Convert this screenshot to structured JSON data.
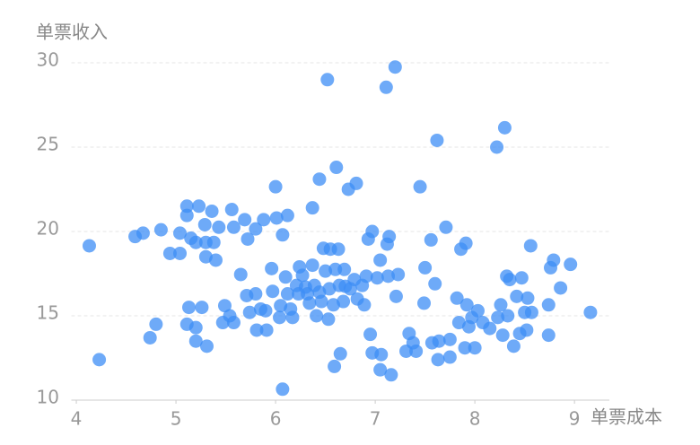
{
  "chart_data": {
    "type": "scatter",
    "y_label": "单票收入",
    "x_label": "单票成本",
    "color": "#3d8ef5",
    "xlim": [
      3.95,
      9.35
    ],
    "ylim": [
      10,
      30
    ],
    "xticks": [
      4,
      5,
      6,
      7,
      8,
      9
    ],
    "yticks": [
      10,
      15,
      20,
      25,
      30
    ],
    "grid": true,
    "x": [
      4.13,
      4.23,
      4.59,
      4.67,
      4.74,
      4.8,
      4.85,
      4.94,
      5.04,
      5.04,
      5.11,
      5.11,
      5.13,
      5.11,
      5.15,
      5.2,
      5.2,
      5.2,
      5.23,
      5.26,
      5.29,
      5.3,
      5.3,
      5.31,
      5.36,
      5.38,
      5.4,
      5.43,
      5.49,
      5.47,
      5.54,
      5.56,
      5.58,
      5.58,
      5.65,
      5.69,
      5.71,
      5.72,
      5.74,
      5.8,
      5.8,
      5.81,
      5.85,
      5.88,
      5.91,
      5.9,
      5.96,
      5.97,
      6.0,
      6.01,
      6.04,
      6.05,
      6.07,
      6.07,
      6.1,
      6.12,
      6.12,
      6.15,
      6.17,
      6.21,
      6.23,
      6.24,
      6.27,
      6.3,
      6.32,
      6.34,
      6.37,
      6.37,
      6.39,
      6.41,
      6.44,
      6.44,
      6.46,
      6.48,
      6.5,
      6.52,
      6.53,
      6.54,
      6.55,
      6.58,
      6.59,
      6.6,
      6.61,
      6.63,
      6.64,
      6.65,
      6.68,
      6.69,
      6.7,
      6.73,
      6.75,
      6.79,
      6.81,
      6.82,
      6.87,
      6.89,
      6.91,
      6.93,
      6.95,
      6.97,
      6.97,
      7.02,
      7.05,
      7.05,
      7.06,
      7.11,
      7.12,
      7.13,
      7.14,
      7.16,
      7.2,
      7.21,
      7.23,
      7.31,
      7.34,
      7.38,
      7.41,
      7.45,
      7.49,
      7.5,
      7.56,
      7.57,
      7.6,
      7.62,
      7.63,
      7.64,
      7.71,
      7.75,
      7.75,
      7.82,
      7.84,
      7.86,
      7.9,
      7.91,
      7.92,
      7.94,
      7.97,
      8.0,
      8.03,
      8.08,
      8.15,
      8.22,
      8.23,
      8.26,
      8.28,
      8.3,
      8.32,
      8.33,
      8.35,
      8.39,
      8.42,
      8.45,
      8.47,
      8.5,
      8.52,
      8.53,
      8.56,
      8.57,
      8.74,
      8.74,
      8.76,
      8.79,
      8.86,
      8.96,
      9.16
    ],
    "values": [
      19.15,
      12.4,
      19.7,
      19.9,
      13.7,
      14.5,
      20.1,
      18.7,
      19.9,
      18.7,
      21.5,
      20.95,
      15.5,
      14.5,
      19.6,
      19.35,
      14.3,
      13.5,
      21.5,
      15.5,
      20.4,
      18.5,
      19.35,
      13.2,
      21.2,
      19.35,
      18.3,
      20.25,
      15.6,
      14.6,
      15.0,
      21.3,
      20.25,
      14.6,
      17.45,
      20.7,
      16.2,
      19.55,
      15.2,
      20.15,
      16.3,
      14.15,
      15.4,
      20.7,
      14.15,
      15.3,
      17.8,
      16.45,
      22.65,
      20.8,
      14.9,
      15.6,
      19.8,
      10.65,
      17.3,
      20.95,
      16.3,
      15.4,
      14.9,
      16.8,
      16.3,
      17.9,
      17.4,
      16.7,
      16.3,
      15.75,
      21.4,
      18.0,
      16.8,
      15.0,
      23.1,
      16.4,
      15.85,
      19.0,
      17.65,
      29.0,
      14.8,
      16.6,
      18.95,
      15.65,
      12.0,
      17.75,
      23.8,
      18.95,
      16.8,
      12.75,
      15.85,
      17.75,
      16.75,
      22.5,
      16.6,
      17.15,
      22.85,
      16.0,
      16.8,
      15.65,
      17.35,
      19.55,
      13.9,
      20.0,
      12.8,
      17.25,
      18.3,
      11.8,
      12.7,
      28.55,
      19.25,
      17.35,
      19.7,
      11.5,
      29.75,
      16.15,
      17.45,
      12.9,
      13.95,
      13.4,
      12.9,
      22.65,
      15.75,
      17.85,
      19.5,
      13.4,
      16.9,
      25.4,
      12.4,
      13.5,
      20.25,
      12.55,
      13.6,
      16.05,
      14.6,
      18.95,
      13.1,
      19.3,
      15.65,
      14.35,
      14.9,
      13.1,
      15.3,
      14.6,
      14.25,
      25.0,
      14.9,
      15.65,
      13.85,
      26.15,
      17.35,
      15.0,
      17.15,
      13.2,
      16.15,
      13.95,
      17.25,
      15.2,
      14.15,
      16.05,
      19.15,
      15.2,
      15.65,
      13.85,
      17.85,
      18.3,
      16.65,
      18.05,
      15.2
    ]
  }
}
